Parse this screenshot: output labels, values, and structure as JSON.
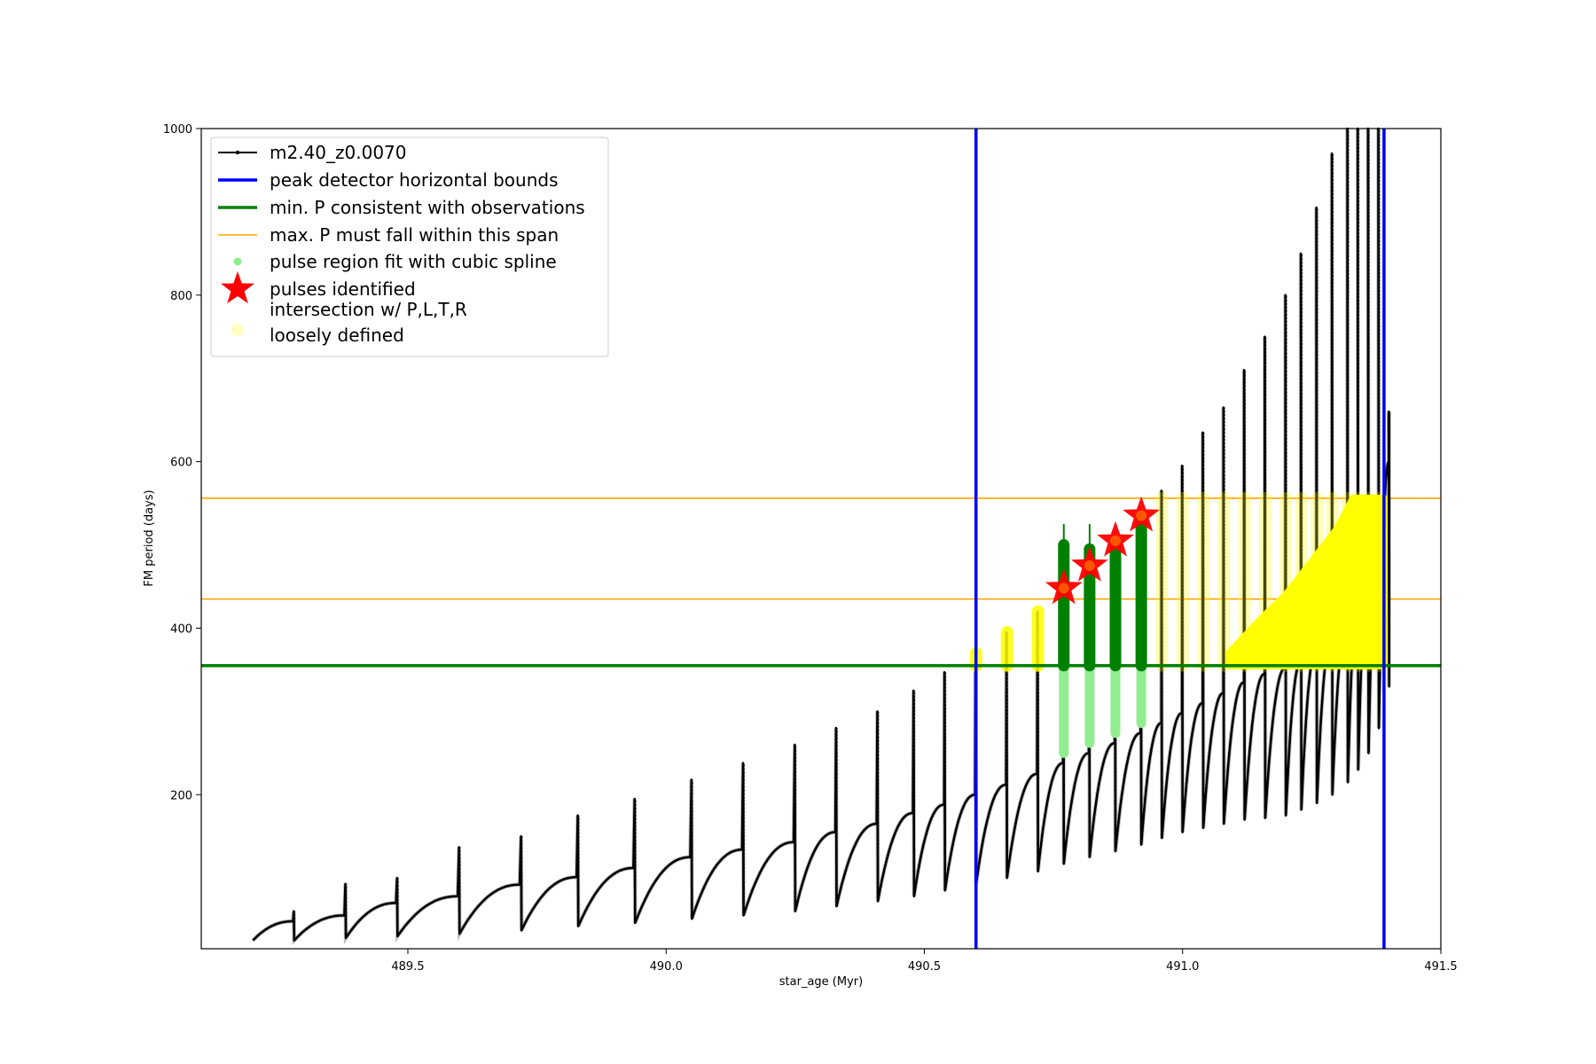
{
  "chart_data": {
    "type": "line",
    "xlabel": "star_age (Myr)",
    "ylabel": "FM period (days)",
    "xlim": [
      489.1,
      491.5
    ],
    "ylim": [
      15,
      1000
    ],
    "xticks": [
      489.5,
      490.0,
      490.5,
      491.0,
      491.5
    ],
    "xtick_labels": [
      "489.5",
      "490.0",
      "490.5",
      "491.0",
      "491.5"
    ],
    "yticks": [
      200,
      400,
      600,
      800,
      1000
    ],
    "ytick_labels": [
      "200",
      "400",
      "600",
      "800",
      "1000"
    ],
    "grid": false,
    "legend_position": "top-left",
    "legend": [
      {
        "label": "m2.40_z0.0070",
        "kind": "line-marker",
        "color": "#000000"
      },
      {
        "label": "peak detector horizontal bounds",
        "kind": "line",
        "color": "#0000ff"
      },
      {
        "label": "min. P consistent with observations",
        "kind": "line",
        "color": "#008000"
      },
      {
        "label": "max. P must fall within this span",
        "kind": "line",
        "color": "#ffa500"
      },
      {
        "label": "pulse region fit with cubic spline",
        "kind": "dot",
        "color": "#90ee90"
      },
      {
        "label": "pulses identified",
        "kind": "star",
        "color": "#ff0000"
      },
      {
        "label": "intersection w/ P,L,T,R",
        "label2": "loosely defined",
        "kind": "dot",
        "color": "#ffffc0"
      }
    ],
    "peak_detector_bounds_x": [
      490.6,
      491.39
    ],
    "min_period_y": 355,
    "max_period_span_y": [
      435,
      556
    ],
    "pulses": [
      {
        "t": 489.2,
        "base": 25,
        "end": 48,
        "peak": 50
      },
      {
        "t": 489.28,
        "base": 25,
        "end": 55,
        "peak": 60
      },
      {
        "t": 489.38,
        "base": 28,
        "end": 70,
        "peak": 93
      },
      {
        "t": 489.48,
        "base": 30,
        "end": 78,
        "peak": 100
      },
      {
        "t": 489.6,
        "base": 33,
        "end": 92,
        "peak": 137
      },
      {
        "t": 489.72,
        "base": 37,
        "end": 101,
        "peak": 150
      },
      {
        "t": 489.83,
        "base": 42,
        "end": 112,
        "peak": 175
      },
      {
        "t": 489.94,
        "base": 46,
        "end": 125,
        "peak": 195
      },
      {
        "t": 490.05,
        "base": 51,
        "end": 134,
        "peak": 218
      },
      {
        "t": 490.15,
        "base": 55,
        "end": 143,
        "peak": 238
      },
      {
        "t": 490.25,
        "base": 60,
        "end": 155,
        "peak": 260
      },
      {
        "t": 490.33,
        "base": 66,
        "end": 165,
        "peak": 280
      },
      {
        "t": 490.41,
        "base": 72,
        "end": 178,
        "peak": 300
      },
      {
        "t": 490.48,
        "base": 78,
        "end": 188,
        "peak": 325
      },
      {
        "t": 490.54,
        "base": 85,
        "end": 200,
        "peak": 347
      },
      {
        "t": 490.6,
        "base": 92,
        "end": 212,
        "peak": 370
      },
      {
        "t": 490.66,
        "base": 100,
        "end": 225,
        "peak": 395
      },
      {
        "t": 490.72,
        "base": 108,
        "end": 238,
        "peak": 420
      },
      {
        "t": 490.77,
        "base": 117,
        "end": 250,
        "peak": 450
      },
      {
        "t": 490.82,
        "base": 125,
        "end": 262,
        "peak": 475
      },
      {
        "t": 490.87,
        "base": 132,
        "end": 274,
        "peak": 505
      },
      {
        "t": 490.92,
        "base": 140,
        "end": 286,
        "peak": 535
      },
      {
        "t": 490.96,
        "base": 148,
        "end": 298,
        "peak": 565
      },
      {
        "t": 491.0,
        "base": 155,
        "end": 310,
        "peak": 595
      },
      {
        "t": 491.04,
        "base": 160,
        "end": 322,
        "peak": 635
      },
      {
        "t": 491.08,
        "base": 165,
        "end": 335,
        "peak": 665
      },
      {
        "t": 491.12,
        "base": 170,
        "end": 345,
        "peak": 710
      },
      {
        "t": 491.16,
        "base": 172,
        "end": 352,
        "peak": 750
      },
      {
        "t": 491.2,
        "base": 175,
        "end": 360,
        "peak": 800
      },
      {
        "t": 491.23,
        "base": 182,
        "end": 375,
        "peak": 850
      },
      {
        "t": 491.26,
        "base": 190,
        "end": 390,
        "peak": 905
      },
      {
        "t": 491.29,
        "base": 200,
        "end": 410,
        "peak": 970
      },
      {
        "t": 491.32,
        "base": 215,
        "end": 430,
        "peak": 1000
      },
      {
        "t": 491.34,
        "base": 230,
        "end": 460,
        "peak": 1000
      },
      {
        "t": 491.36,
        "base": 250,
        "end": 520,
        "peak": 1000
      },
      {
        "t": 491.38,
        "base": 280,
        "end": 600,
        "peak": 1000
      },
      {
        "t": 491.4,
        "base": 330,
        "end": 660,
        "peak": 660
      }
    ],
    "pulse_fit_regions": [
      {
        "x": 490.77,
        "ymin": 250,
        "ymax": 500,
        "solid_from": 355,
        "whisker_top": 525
      },
      {
        "x": 490.82,
        "ymin": 262,
        "ymax": 495,
        "solid_from": 355,
        "whisker_top": 525
      },
      {
        "x": 490.87,
        "ymin": 274,
        "ymax": 500,
        "solid_from": 355,
        "whisker_top": 510
      },
      {
        "x": 490.92,
        "ymin": 286,
        "ymax": 530,
        "solid_from": 355,
        "whisker_top": 540
      }
    ],
    "pulses_identified": [
      {
        "x": 490.77,
        "y": 448
      },
      {
        "x": 490.82,
        "y": 475
      },
      {
        "x": 490.87,
        "y": 505
      },
      {
        "x": 490.92,
        "y": 535
      }
    ],
    "intersection_regions": [
      {
        "x": 490.6,
        "ymin": 355,
        "ymax": 370
      },
      {
        "x": 490.66,
        "ymin": 355,
        "ymax": 395
      },
      {
        "x": 490.72,
        "ymin": 355,
        "ymax": 420
      },
      {
        "x": 490.96,
        "ymin": 355,
        "ymax": 556
      },
      {
        "x": 491.0,
        "ymin": 355,
        "ymax": 556
      },
      {
        "x": 491.04,
        "ymin": 355,
        "ymax": 556
      },
      {
        "x": 491.08,
        "ymin": 355,
        "ymax": 556
      },
      {
        "x": 491.12,
        "ymin": 355,
        "ymax": 556
      },
      {
        "x": 491.16,
        "ymin": 355,
        "ymax": 556
      },
      {
        "x": 491.2,
        "ymin": 355,
        "ymax": 556
      },
      {
        "x": 491.23,
        "ymin": 355,
        "ymax": 556
      },
      {
        "x": 491.26,
        "ymin": 355,
        "ymax": 556
      },
      {
        "x": 491.29,
        "ymin": 355,
        "ymax": 556
      },
      {
        "x": 491.32,
        "ymin": 355,
        "ymax": 556
      },
      {
        "x": 491.34,
        "ymin": 355,
        "ymax": 556
      },
      {
        "x": 491.36,
        "ymin": 355,
        "ymax": 556
      },
      {
        "x": 491.38,
        "ymin": 355,
        "ymax": 556
      }
    ],
    "intersection_dense_band": [
      {
        "x": 491.09,
        "ymax": 370
      },
      {
        "x": 491.15,
        "ymax": 410
      },
      {
        "x": 491.2,
        "ymax": 440
      },
      {
        "x": 491.25,
        "ymax": 480
      },
      {
        "x": 491.3,
        "ymax": 520
      },
      {
        "x": 491.33,
        "ymax": 556
      },
      {
        "x": 491.39,
        "ymax": 556
      }
    ]
  }
}
